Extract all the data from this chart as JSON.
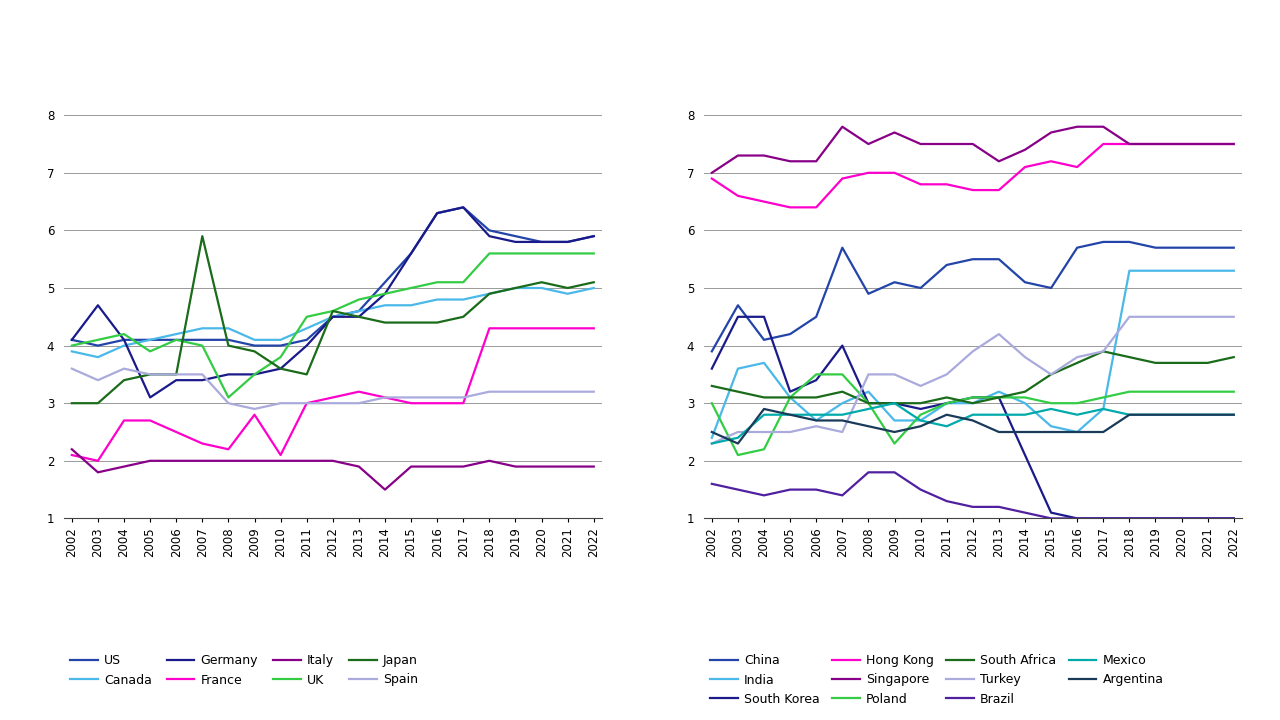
{
  "years": [
    2002,
    2003,
    2004,
    2005,
    2006,
    2007,
    2008,
    2009,
    2010,
    2011,
    2012,
    2013,
    2014,
    2015,
    2016,
    2017,
    2018,
    2019,
    2020,
    2021,
    2022
  ],
  "left_chart": {
    "series": {
      "US": [
        4.1,
        4.0,
        4.1,
        4.1,
        4.1,
        4.1,
        4.1,
        4.0,
        4.0,
        4.1,
        4.5,
        4.6,
        5.1,
        5.6,
        6.3,
        6.4,
        6.0,
        5.9,
        5.8,
        5.8,
        5.9
      ],
      "Canada": [
        3.9,
        3.8,
        4.0,
        4.1,
        4.2,
        4.3,
        4.3,
        4.1,
        4.1,
        4.3,
        4.5,
        4.6,
        4.7,
        4.7,
        4.8,
        4.8,
        4.9,
        5.0,
        5.0,
        4.9,
        5.0
      ],
      "Germany": [
        4.1,
        4.7,
        4.1,
        3.1,
        3.4,
        3.4,
        3.5,
        3.5,
        3.6,
        4.0,
        4.5,
        4.5,
        4.9,
        5.6,
        6.3,
        6.4,
        5.9,
        5.8,
        5.8,
        5.8,
        5.9
      ],
      "France": [
        2.1,
        2.0,
        2.7,
        2.7,
        2.5,
        2.3,
        2.2,
        2.8,
        2.1,
        3.0,
        3.1,
        3.2,
        3.1,
        3.0,
        3.0,
        3.0,
        4.3,
        4.3,
        4.3,
        4.3,
        4.3
      ],
      "Italy": [
        2.2,
        1.8,
        1.9,
        2.0,
        2.0,
        2.0,
        2.0,
        2.0,
        2.0,
        2.0,
        2.0,
        1.9,
        1.5,
        1.9,
        1.9,
        1.9,
        2.0,
        1.9,
        1.9,
        1.9,
        1.9
      ],
      "UK": [
        4.0,
        4.1,
        4.2,
        3.9,
        4.1,
        4.0,
        3.1,
        3.5,
        3.8,
        4.5,
        4.6,
        4.8,
        4.9,
        5.0,
        5.1,
        5.1,
        5.6,
        5.6,
        5.6,
        5.6,
        5.6
      ],
      "Japan": [
        3.0,
        3.0,
        3.4,
        3.5,
        3.5,
        5.9,
        4.0,
        3.9,
        3.6,
        3.5,
        4.6,
        4.5,
        4.4,
        4.4,
        4.4,
        4.5,
        4.9,
        5.0,
        5.1,
        5.0,
        5.1
      ],
      "Spain": [
        3.6,
        3.4,
        3.6,
        3.5,
        3.5,
        3.5,
        3.0,
        2.9,
        3.0,
        3.0,
        3.0,
        3.0,
        3.1,
        3.1,
        3.1,
        3.1,
        3.2,
        3.2,
        3.2,
        3.2,
        3.2
      ]
    },
    "colors": {
      "US": "#2344a8",
      "Canada": "#4ab8e8",
      "Germany": "#1a1a8a",
      "France": "#ff00cc",
      "Italy": "#880088",
      "UK": "#33cc44",
      "Japan": "#1a6b1a",
      "Spain": "#aaaadd"
    },
    "legend_order": [
      "US",
      "Canada",
      "Germany",
      "France",
      "Italy",
      "UK",
      "Japan",
      "Spain"
    ]
  },
  "right_chart": {
    "series": {
      "China": [
        3.9,
        4.7,
        4.1,
        4.2,
        4.5,
        5.7,
        4.9,
        5.1,
        5.0,
        5.4,
        5.5,
        5.5,
        5.1,
        5.0,
        5.7,
        5.8,
        5.8,
        5.7,
        5.7,
        5.7,
        5.7
      ],
      "India": [
        2.4,
        3.6,
        3.7,
        3.1,
        2.7,
        3.0,
        3.2,
        2.7,
        2.7,
        3.0,
        3.0,
        3.2,
        3.0,
        2.6,
        2.5,
        2.9,
        5.3,
        5.3,
        5.3,
        5.3,
        5.3
      ],
      "South Korea": [
        3.6,
        4.5,
        4.5,
        3.2,
        3.4,
        4.0,
        3.0,
        3.0,
        2.9,
        3.0,
        3.1,
        3.1,
        2.1,
        1.1,
        1.0,
        1.0,
        1.0,
        1.0,
        1.0,
        1.0,
        1.0
      ],
      "Hong Kong": [
        6.9,
        6.6,
        6.5,
        6.4,
        6.4,
        6.9,
        7.0,
        7.0,
        6.8,
        6.8,
        6.7,
        6.7,
        7.1,
        7.2,
        7.1,
        7.5,
        7.5,
        7.5,
        7.5,
        7.5,
        7.5
      ],
      "Singapore": [
        7.0,
        7.3,
        7.3,
        7.2,
        7.2,
        7.8,
        7.5,
        7.7,
        7.5,
        7.5,
        7.5,
        7.2,
        7.4,
        7.7,
        7.8,
        7.8,
        7.5,
        7.5,
        7.5,
        7.5,
        7.5
      ],
      "Poland": [
        3.0,
        2.1,
        2.2,
        3.1,
        3.5,
        3.5,
        3.0,
        2.3,
        2.8,
        3.0,
        3.1,
        3.1,
        3.1,
        3.0,
        3.0,
        3.1,
        3.2,
        3.2,
        3.2,
        3.2,
        3.2
      ],
      "South Africa": [
        3.3,
        3.2,
        3.1,
        3.1,
        3.1,
        3.2,
        3.0,
        3.0,
        3.0,
        3.1,
        3.0,
        3.1,
        3.2,
        3.5,
        3.7,
        3.9,
        3.8,
        3.7,
        3.7,
        3.7,
        3.8
      ],
      "Turkey": [
        2.3,
        2.5,
        2.5,
        2.5,
        2.6,
        2.5,
        3.5,
        3.5,
        3.3,
        3.5,
        3.9,
        4.2,
        3.8,
        3.5,
        3.8,
        3.9,
        4.5,
        4.5,
        4.5,
        4.5,
        4.5
      ],
      "Brazil": [
        1.6,
        1.5,
        1.4,
        1.5,
        1.5,
        1.4,
        1.8,
        1.8,
        1.5,
        1.3,
        1.2,
        1.2,
        1.1,
        1.0,
        1.0,
        1.0,
        1.0,
        1.0,
        1.0,
        1.0,
        1.0
      ],
      "Mexico": [
        2.3,
        2.4,
        2.8,
        2.8,
        2.8,
        2.8,
        2.9,
        3.0,
        2.7,
        2.6,
        2.8,
        2.8,
        2.8,
        2.9,
        2.8,
        2.9,
        2.8,
        2.8,
        2.8,
        2.8,
        2.8
      ],
      "Argentina": [
        2.5,
        2.3,
        2.9,
        2.8,
        2.7,
        2.7,
        2.6,
        2.5,
        2.6,
        2.8,
        2.7,
        2.5,
        2.5,
        2.5,
        2.5,
        2.5,
        2.8,
        2.8,
        2.8,
        2.8,
        2.8
      ]
    },
    "colors": {
      "China": "#2344a8",
      "India": "#4ab8e8",
      "South Korea": "#1a1a8a",
      "Hong Kong": "#ff00cc",
      "Singapore": "#880088",
      "Poland": "#33cc44",
      "South Africa": "#1a6b1a",
      "Turkey": "#aaaadd",
      "Brazil": "#5020a0",
      "Mexico": "#00aaaa",
      "Argentina": "#1a3a5a"
    },
    "legend_order": [
      "China",
      "India",
      "South Korea",
      "Hong Kong",
      "Singapore",
      "Poland",
      "South Africa",
      "Turkey",
      "Brazil",
      "Mexico",
      "Argentina"
    ]
  },
  "ylim": [
    1,
    8.5
  ],
  "yticks": [
    1,
    2,
    3,
    4,
    5,
    6,
    7,
    8
  ],
  "background_color": "#ffffff",
  "grid_color": "#999999",
  "font_size": 8.5,
  "legend_font_size": 9,
  "linewidth": 1.6
}
